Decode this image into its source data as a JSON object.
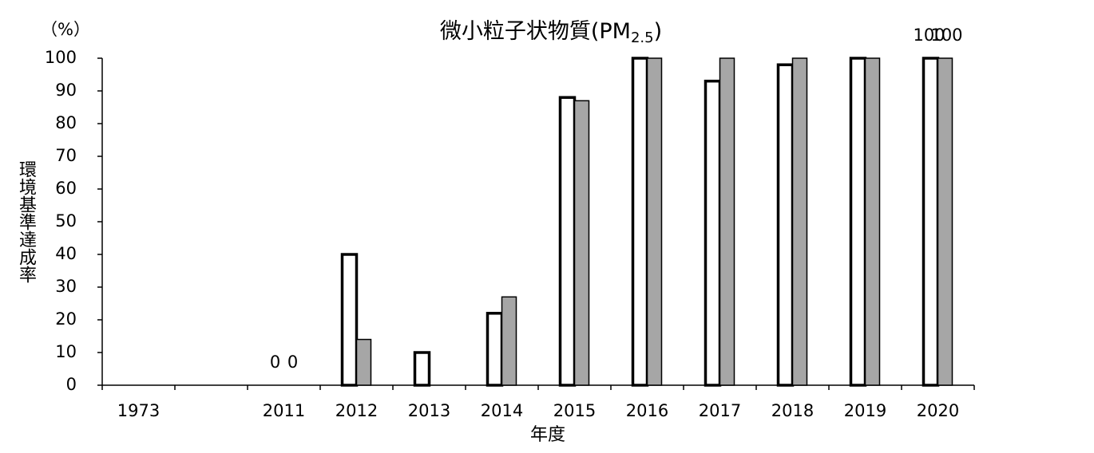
{
  "chart_data": {
    "type": "bar",
    "title": "微小粒子状物質(PM",
    "title_subscript": "2.5",
    "title_end": ")",
    "y_unit": "（%）",
    "y_label": "環境基準達成率",
    "x_label": "年度",
    "categories": [
      "1973",
      null,
      "2011",
      "2012",
      "2013",
      "2014",
      "2015",
      "2016",
      "2017",
      "2018",
      "2019",
      "2020"
    ],
    "series": [
      {
        "color": "#ffffff",
        "edge_width": 3.5,
        "values": [
          null,
          null,
          0,
          40,
          10,
          22,
          88,
          100,
          93,
          98,
          100,
          100
        ]
      },
      {
        "color": "#a6a6a6",
        "edge_width": 1.5,
        "values": [
          null,
          null,
          0,
          14,
          0,
          27,
          87,
          100,
          100,
          100,
          100,
          100
        ]
      }
    ],
    "labeled_categories": [
      2,
      11
    ],
    "ylim": [
      0,
      100
    ],
    "yticks": [
      0,
      10,
      20,
      30,
      40,
      50,
      60,
      70,
      80,
      90,
      100
    ],
    "grid": false
  }
}
